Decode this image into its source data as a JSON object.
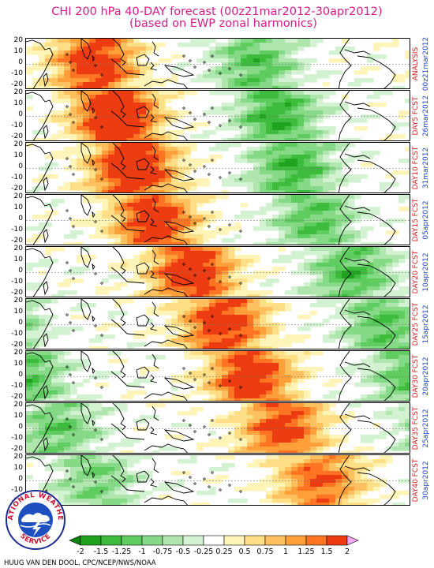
{
  "title": {
    "line1": "CHI 200 hPa 40-DAY forecast (00z21mar2012-30apr2012)",
    "line2": "(based on EWP zonal harmonics)"
  },
  "y_ticks": [
    "20",
    "10",
    "0",
    "-10",
    "-20"
  ],
  "panels": [
    {
      "label": "ANALYSIS",
      "date": "00z21mar2012",
      "anomaly_center_lon": 95,
      "strength": 1.0
    },
    {
      "label": "DAY5 FCST",
      "date": "26mar2012",
      "anomaly_center_lon": 115,
      "strength": 1.2
    },
    {
      "label": "DAY10 FCST",
      "date": "31mar2012",
      "anomaly_center_lon": 130,
      "strength": 1.15
    },
    {
      "label": "DAY15 FCST",
      "date": "05apr2012",
      "anomaly_center_lon": 150,
      "strength": 1.0
    },
    {
      "label": "DAY20 FCST",
      "date": "10apr2012",
      "anomaly_center_lon": 185,
      "strength": 1.05
    },
    {
      "label": "DAY25 FCST",
      "date": "15apr2012",
      "anomaly_center_lon": 215,
      "strength": 1.0
    },
    {
      "label": "DAY30 FCST",
      "date": "20apr2012",
      "anomaly_center_lon": 240,
      "strength": 1.0
    },
    {
      "label": "DAY35 FCST",
      "date": "25apr2012",
      "anomaly_center_lon": 270,
      "strength": 0.9
    },
    {
      "label": "DAY40 FCST",
      "date": "30apr2012",
      "anomaly_center_lon": 305,
      "strength": 0.8
    }
  ],
  "legend": {
    "labels": [
      "-2",
      "-1.5",
      "-1.25",
      "-1",
      "-0.75",
      "-0.5",
      "-0.25",
      "0.25",
      "0.5",
      "0.75",
      "1",
      "1.25",
      "1.5",
      "2"
    ],
    "colors": [
      "#1fa31f",
      "#3dbb3d",
      "#5fcc5f",
      "#86d986",
      "#aee6ae",
      "#d2f2d2",
      "#ffffff",
      "#fff4b8",
      "#ffdf86",
      "#ffc160",
      "#ff9f3a",
      "#ff7422",
      "#ee3c12"
    ],
    "low_arrow_color": "#0f820f",
    "high_arrow_color": "#f2a8ef"
  },
  "credit": "HUUG VAN DEN DOOL, CPC/NCEP/NWS/NOAA",
  "logo": {
    "ring_text_top": "NATIONAL WEATHER",
    "ring_text_bottom": "SERVICE"
  }
}
